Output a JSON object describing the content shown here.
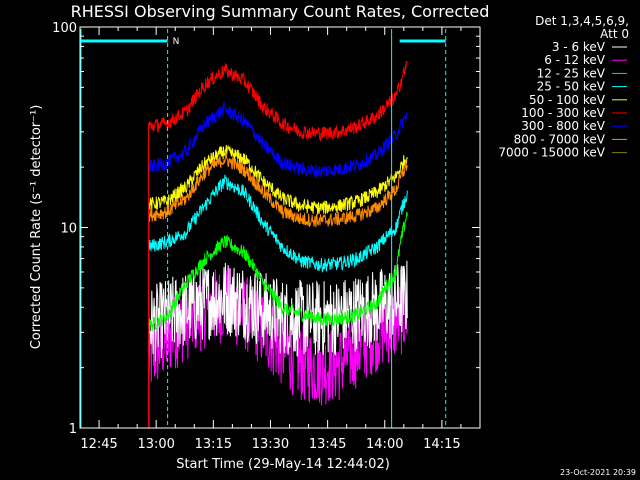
{
  "chart_data": {
    "type": "line",
    "title": "RHESSI Observing Summary Count Rates, Corrected",
    "xlabel": "Start Time (29-May-14 12:44:02)",
    "ylabel": "Corrected Count Rate (s⁻¹ detector⁻¹)",
    "yscale": "log",
    "ylim": [
      1,
      100
    ],
    "xlim": [
      "12:40",
      "14:25"
    ],
    "x_ticks": [
      "12:45",
      "13:00",
      "13:15",
      "13:30",
      "13:45",
      "14:00",
      "14:15"
    ],
    "y_ticks": [
      "1",
      "10",
      "100"
    ],
    "legend_header": [
      "Det 1,3,4,5,6,9,",
      "Att 0"
    ],
    "legend_position": "top-right, outside plot",
    "data_interval": [
      "12:58",
      "14:06"
    ],
    "night_interval_marker": {
      "label": "N",
      "start": "13:03",
      "end": "14:16",
      "color": "#00ffff"
    },
    "timestamp": "23-Oct-2021 20:39",
    "times": [
      "12:58",
      "13:03",
      "13:08",
      "13:13",
      "13:18",
      "13:23",
      "13:28",
      "13:33",
      "13:38",
      "13:43",
      "13:48",
      "13:53",
      "13:58",
      "14:03",
      "14:06"
    ],
    "series": [
      {
        "name": "3 - 6 keV",
        "color": "#ffffff",
        "values": [
          3.2,
          3.6,
          3.9,
          4.3,
          4.5,
          4.3,
          3.9,
          3.6,
          3.5,
          3.5,
          3.6,
          3.8,
          4.0,
          4.3,
          4.5
        ]
      },
      {
        "name": "6 - 12 keV",
        "color": "#ff00ff",
        "values": [
          2.2,
          2.8,
          3.4,
          3.9,
          4.2,
          3.8,
          3.1,
          2.5,
          2.1,
          2.0,
          2.1,
          2.5,
          3.0,
          3.4,
          3.8
        ]
      },
      {
        "name": "12 - 25 keV",
        "color": "#00ff00",
        "values": [
          3.2,
          3.6,
          5.3,
          7.0,
          8.5,
          7.5,
          5.3,
          4.0,
          3.7,
          3.5,
          3.5,
          3.7,
          4.2,
          6.0,
          12.0
        ]
      },
      {
        "name": "25 - 50 keV",
        "color": "#00ffff",
        "values": [
          8.0,
          8.5,
          9.5,
          13.0,
          17.0,
          15.0,
          10.5,
          8.0,
          6.8,
          6.5,
          6.6,
          7.0,
          8.0,
          10.0,
          15.0
        ]
      },
      {
        "name": "50 - 100 keV",
        "color": "#ffff00",
        "values": [
          13.0,
          13.5,
          16.0,
          21.0,
          24.0,
          22.0,
          17.0,
          14.0,
          12.8,
          12.5,
          12.8,
          13.5,
          15.0,
          18.0,
          23.0
        ]
      },
      {
        "name": "100 - 300 keV",
        "color": "#ff0000",
        "values": [
          32.0,
          33.0,
          38.0,
          52.0,
          61.0,
          54.0,
          40.0,
          33.0,
          30.0,
          29.5,
          30.0,
          32.0,
          36.0,
          45.0,
          66.0
        ]
      },
      {
        "name": "300 - 800 keV",
        "color": "#0000ff",
        "values": [
          20.0,
          21.0,
          24.0,
          33.0,
          39.0,
          34.0,
          26.0,
          21.0,
          19.5,
          19.0,
          19.5,
          20.5,
          23.0,
          29.0,
          37.0
        ]
      },
      {
        "name": "800 - 7000 keV",
        "color": "#ff8c00",
        "values": [
          11.5,
          12.0,
          14.0,
          19.0,
          22.0,
          19.5,
          15.0,
          12.0,
          11.0,
          10.8,
          11.0,
          11.5,
          12.5,
          15.5,
          21.0
        ]
      },
      {
        "name": "7000 - 15000 keV",
        "color": "#808000",
        "values": []
      }
    ]
  }
}
